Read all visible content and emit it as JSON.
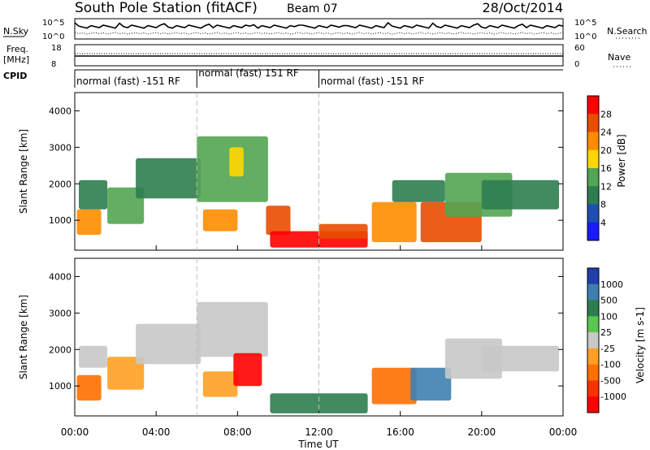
{
  "header": {
    "station": "South Pole Station (fitACF)",
    "beam": "Beam 07",
    "date": "28/Oct/2014"
  },
  "sky_panel": {
    "left_label": "N.Sky",
    "right_label": "N.Search",
    "left_ticks": [
      "10^5",
      "10^0"
    ],
    "right_ticks": [
      "10^5",
      "10^0"
    ]
  },
  "freq_panel": {
    "left_label_1": "Freq.",
    "left_label_2": "[MHz]",
    "right_label": "Nave",
    "left_ticks": [
      "18",
      "8"
    ],
    "right_ticks": [
      "60",
      "0"
    ]
  },
  "cpid": {
    "label": "CPID",
    "modes": [
      {
        "label": "normal (fast) -151 RF",
        "start_hour": 0,
        "end_hour": 6
      },
      {
        "label": "normal (fast) 151 RF",
        "start_hour": 6,
        "end_hour": 12
      },
      {
        "label": "normal (fast) -151 RF",
        "start_hour": 12,
        "end_hour": 24
      }
    ]
  },
  "power_panel": {
    "ylabel": "Slant Range [km]",
    "colorbar_label": "Power [dB]",
    "colorbar_ticks": [
      "28",
      "24",
      "20",
      "16",
      "12",
      "8",
      "4"
    ],
    "colors": [
      "#ff0000",
      "#e84d00",
      "#ff8c00",
      "#ffd700",
      "#52a552",
      "#2e7d4f",
      "#1e4fb0",
      "#1a1aff"
    ]
  },
  "velocity_panel": {
    "ylabel": "Slant Range [km]",
    "colorbar_label": "Velocity [m s-1]",
    "colorbar_ticks": [
      "1000",
      "500",
      "100",
      "25",
      "-25",
      "-100",
      "-500",
      "-1000"
    ],
    "colors": [
      "#1e40a8",
      "#3f7fb0",
      "#2e7d4f",
      "#5ac84e",
      "#c8c8c8",
      "#ffa024",
      "#ff7000",
      "#ff3000",
      "#ff0000"
    ]
  },
  "x_axis": {
    "label": "Time UT",
    "ticks": [
      "00:00",
      "04:00",
      "08:00",
      "12:00",
      "16:00",
      "20:00",
      "00:00"
    ]
  },
  "chart_data": {
    "type": "heatmap",
    "title": "South Pole Station (fitACF)   Beam 07   28/Oct/2014",
    "xlabel": "Time UT",
    "ylabel": "Slant Range [km]",
    "xlim": [
      0,
      24
    ],
    "ylim": [
      180,
      4500
    ],
    "x_ticks_hours": [
      0,
      4,
      8,
      12,
      16,
      20,
      24
    ],
    "y_ticks": [
      1000,
      2000,
      3000,
      4000
    ],
    "power_regions": [
      {
        "t0": 0.1,
        "t1": 1.3,
        "r0": 600,
        "r1": 1300,
        "level": 2
      },
      {
        "t0": 0.2,
        "t1": 1.6,
        "r0": 1300,
        "r1": 2100,
        "level": 5
      },
      {
        "t0": 1.6,
        "t1": 3.4,
        "r0": 900,
        "r1": 1900,
        "level": 4
      },
      {
        "t0": 3.0,
        "t1": 6.2,
        "r0": 1600,
        "r1": 2700,
        "level": 5
      },
      {
        "t0": 6.0,
        "t1": 9.5,
        "r0": 1500,
        "r1": 3300,
        "level": 4
      },
      {
        "t0": 7.6,
        "t1": 8.3,
        "r0": 2200,
        "r1": 3000,
        "level": 3
      },
      {
        "t0": 6.3,
        "t1": 8.0,
        "r0": 700,
        "r1": 1300,
        "level": 2
      },
      {
        "t0": 9.4,
        "t1": 10.6,
        "r0": 600,
        "r1": 1400,
        "level": 1
      },
      {
        "t0": 9.6,
        "t1": 14.4,
        "r0": 250,
        "r1": 700,
        "level": 0
      },
      {
        "t0": 12.0,
        "t1": 14.4,
        "r0": 500,
        "r1": 900,
        "level": 1
      },
      {
        "t0": 14.6,
        "t1": 16.8,
        "r0": 400,
        "r1": 1500,
        "level": 2
      },
      {
        "t0": 15.6,
        "t1": 18.2,
        "r0": 1500,
        "r1": 2100,
        "level": 5
      },
      {
        "t0": 17.0,
        "t1": 20.0,
        "r0": 400,
        "r1": 1500,
        "level": 1
      },
      {
        "t0": 18.2,
        "t1": 21.5,
        "r0": 1100,
        "r1": 2300,
        "level": 4
      },
      {
        "t0": 20.0,
        "t1": 23.8,
        "r0": 1300,
        "r1": 2100,
        "level": 5
      }
    ],
    "velocity_regions": [
      {
        "t0": 0.1,
        "t1": 1.3,
        "r0": 600,
        "r1": 1300,
        "level": 6
      },
      {
        "t0": 0.2,
        "t1": 1.6,
        "r0": 1500,
        "r1": 2100,
        "level": 4
      },
      {
        "t0": 1.6,
        "t1": 3.4,
        "r0": 900,
        "r1": 1800,
        "level": 5
      },
      {
        "t0": 3.0,
        "t1": 6.2,
        "r0": 1600,
        "r1": 2700,
        "level": 4
      },
      {
        "t0": 6.0,
        "t1": 9.5,
        "r0": 1800,
        "r1": 3300,
        "level": 4
      },
      {
        "t0": 6.3,
        "t1": 8.0,
        "r0": 700,
        "r1": 1400,
        "level": 5
      },
      {
        "t0": 7.8,
        "t1": 9.2,
        "r0": 1000,
        "r1": 1900,
        "level": 8
      },
      {
        "t0": 9.6,
        "t1": 14.4,
        "r0": 250,
        "r1": 800,
        "level": 2
      },
      {
        "t0": 14.6,
        "t1": 16.8,
        "r0": 500,
        "r1": 1500,
        "level": 6
      },
      {
        "t0": 16.5,
        "t1": 18.5,
        "r0": 600,
        "r1": 1500,
        "level": 1
      },
      {
        "t0": 18.2,
        "t1": 21.0,
        "r0": 1200,
        "r1": 2300,
        "level": 4
      },
      {
        "t0": 20.0,
        "t1": 23.8,
        "r0": 1400,
        "r1": 2100,
        "level": 4
      }
    ]
  }
}
